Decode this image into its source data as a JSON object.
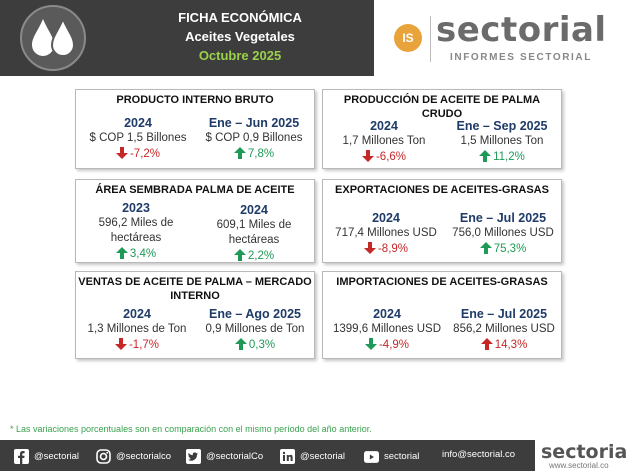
{
  "header": {
    "line1": "FICHA ECONÓMICA",
    "line2": "Aceites Vegetales",
    "line3": "Octubre 2025",
    "icon": "oil-drops-icon"
  },
  "brand": {
    "badge": "IS",
    "name": "sectorial",
    "subtitle": "INFORMES SECTORIAL"
  },
  "cards": {
    "pib": {
      "title": "PRODUCTO INTERNO BRUTO",
      "left": {
        "period": "2024",
        "value": "$ COP 1,5 Billones",
        "change": "-7,2%",
        "direction": "down"
      },
      "right": {
        "period": "Ene – Jun 2025",
        "value": "$ COP 0,9 Billones",
        "change": "7,8%",
        "direction": "up"
      }
    },
    "palma": {
      "title": "PRODUCCIÓN DE ACEITE DE PALMA CRUDO",
      "left": {
        "period": "2024",
        "value": "1,7 Millones Ton",
        "change": "-6,6%",
        "direction": "down"
      },
      "right": {
        "period": "Ene – Sep 2025",
        "value": "1,5 Millones Ton",
        "change": "11,2%",
        "direction": "up"
      }
    },
    "area": {
      "title": "ÁREA SEMBRADA PALMA DE ACEITE",
      "left": {
        "period": "2023",
        "value1": "596,2 Miles de",
        "value2": "hectáreas",
        "change": "3,4%",
        "direction": "up"
      },
      "right": {
        "period": "2024",
        "value1": "609,1 Miles de",
        "value2": "hectáreas",
        "change": "2,2%",
        "direction": "up"
      }
    },
    "export": {
      "title": "EXPORTACIONES DE ACEITES-GRASAS",
      "left": {
        "period": "2024",
        "value": "717,4 Millones USD",
        "change": "-8,9%",
        "direction": "down"
      },
      "right": {
        "period": "Ene – Jul 2025",
        "value": "756,0 Millones USD",
        "change": "75,3%",
        "direction": "up"
      }
    },
    "ventas": {
      "title1": "VENTAS DE ACEITE DE PALMA – MERCADO",
      "title2": "INTERNO",
      "left": {
        "period": "2024",
        "value": "1,3 Millones de Ton",
        "change": "-1,7%",
        "direction": "down"
      },
      "right": {
        "period": "Ene – Ago 2025",
        "value": "0,9 Millones de Ton",
        "change": "0,3%",
        "direction": "up"
      }
    },
    "import": {
      "title": "IMPORTACIONES DE ACEITES-GRASAS",
      "left": {
        "period": "2024",
        "value": "1399,6 Millones USD",
        "change": "-4,9%",
        "direction": "down"
      },
      "right": {
        "period": "Ene – Jul 2025",
        "value": "856,2 Millones USD",
        "change": "14,3%",
        "direction": "up"
      }
    }
  },
  "note": "* Las variaciones porcentuales son en comparación con el mismo período del año anterior.",
  "footer": {
    "facebook": "@sectorial",
    "instagram": "@sectorialco",
    "twitter": "@sectorialCo",
    "linkedin": "@sectorial",
    "youtube": "sectorial",
    "email": "info@sectorial.co",
    "brand_name": "sectorial",
    "brand_url": "www.sectorial.co"
  },
  "colors": {
    "up": "#1f9a56",
    "down": "#c62828",
    "period": "#1f3b68",
    "header_bg": "#3d3d3d",
    "accent": "#9ad04a"
  }
}
